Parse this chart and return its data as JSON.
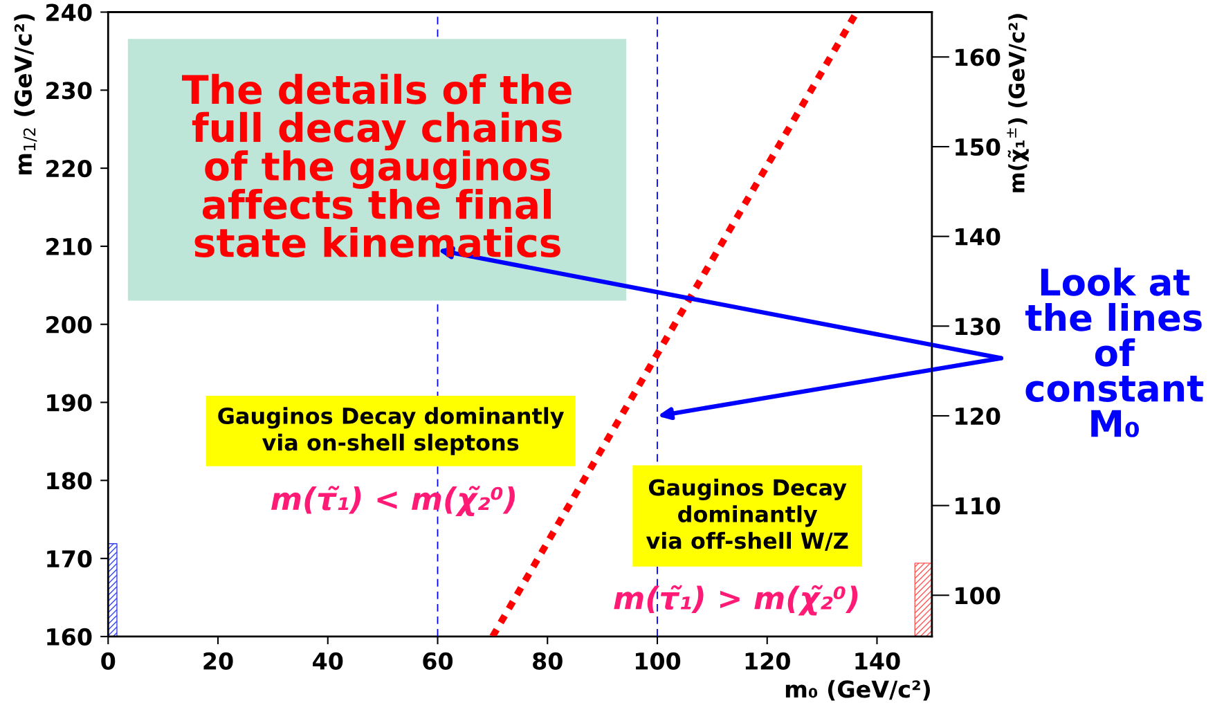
{
  "chart_data": {
    "type": "line",
    "xlabel": "m₀ (GeV/c²)",
    "ylabel": "m$_{1/2}$ (GeV/c²)",
    "y2label": "m(χ̃₁$^{±}$) (GeV/c²)",
    "xlim": [
      0,
      150
    ],
    "xticks": [
      0,
      20,
      40,
      60,
      80,
      100,
      120,
      140
    ],
    "ylim": [
      160,
      240
    ],
    "yticks": [
      160,
      170,
      180,
      190,
      200,
      210,
      220,
      230,
      240
    ],
    "y2lim": [
      95.4,
      165
    ],
    "y2ticks": [
      100,
      110,
      120,
      130,
      140,
      150,
      160
    ],
    "grid": false,
    "legend": false,
    "marker": "none",
    "series": [
      {
        "color": "#ff0000",
        "line_style": "dotted",
        "x": [
          70,
          136.3
        ],
        "values": [
          160,
          240
        ]
      },
      {
        "type": "area",
        "color": "#3344ee",
        "x": [
          0,
          1.6
        ],
        "values": [
          171.9,
          171.9
        ]
      },
      {
        "type": "area",
        "color": "#ff5555",
        "x": [
          146.9,
          150
        ],
        "values": [
          169.4,
          169.4
        ]
      }
    ],
    "ref_lines": [
      {
        "axis": "x",
        "value": 60,
        "color": "#0000ff",
        "line_style": "dashed"
      },
      {
        "axis": "x",
        "value": 100,
        "color": "#0000ff",
        "line_style": "dashed"
      }
    ],
    "annotations": [
      "The details of the\nfull decay chains\nof the gauginos\naffects the final\nstate kinematics",
      "Gauginos Decay dominantly\nvia on-shell sleptons",
      "m(τ̃₁) < m(χ̃₂⁰)",
      "Gauginos Decay\ndominantly\nvia off-shell W/Z",
      "m(τ̃₁) > m(χ̃₂⁰)",
      "Look at\nthe lines\nof\nconstant\nM₀"
    ]
  }
}
